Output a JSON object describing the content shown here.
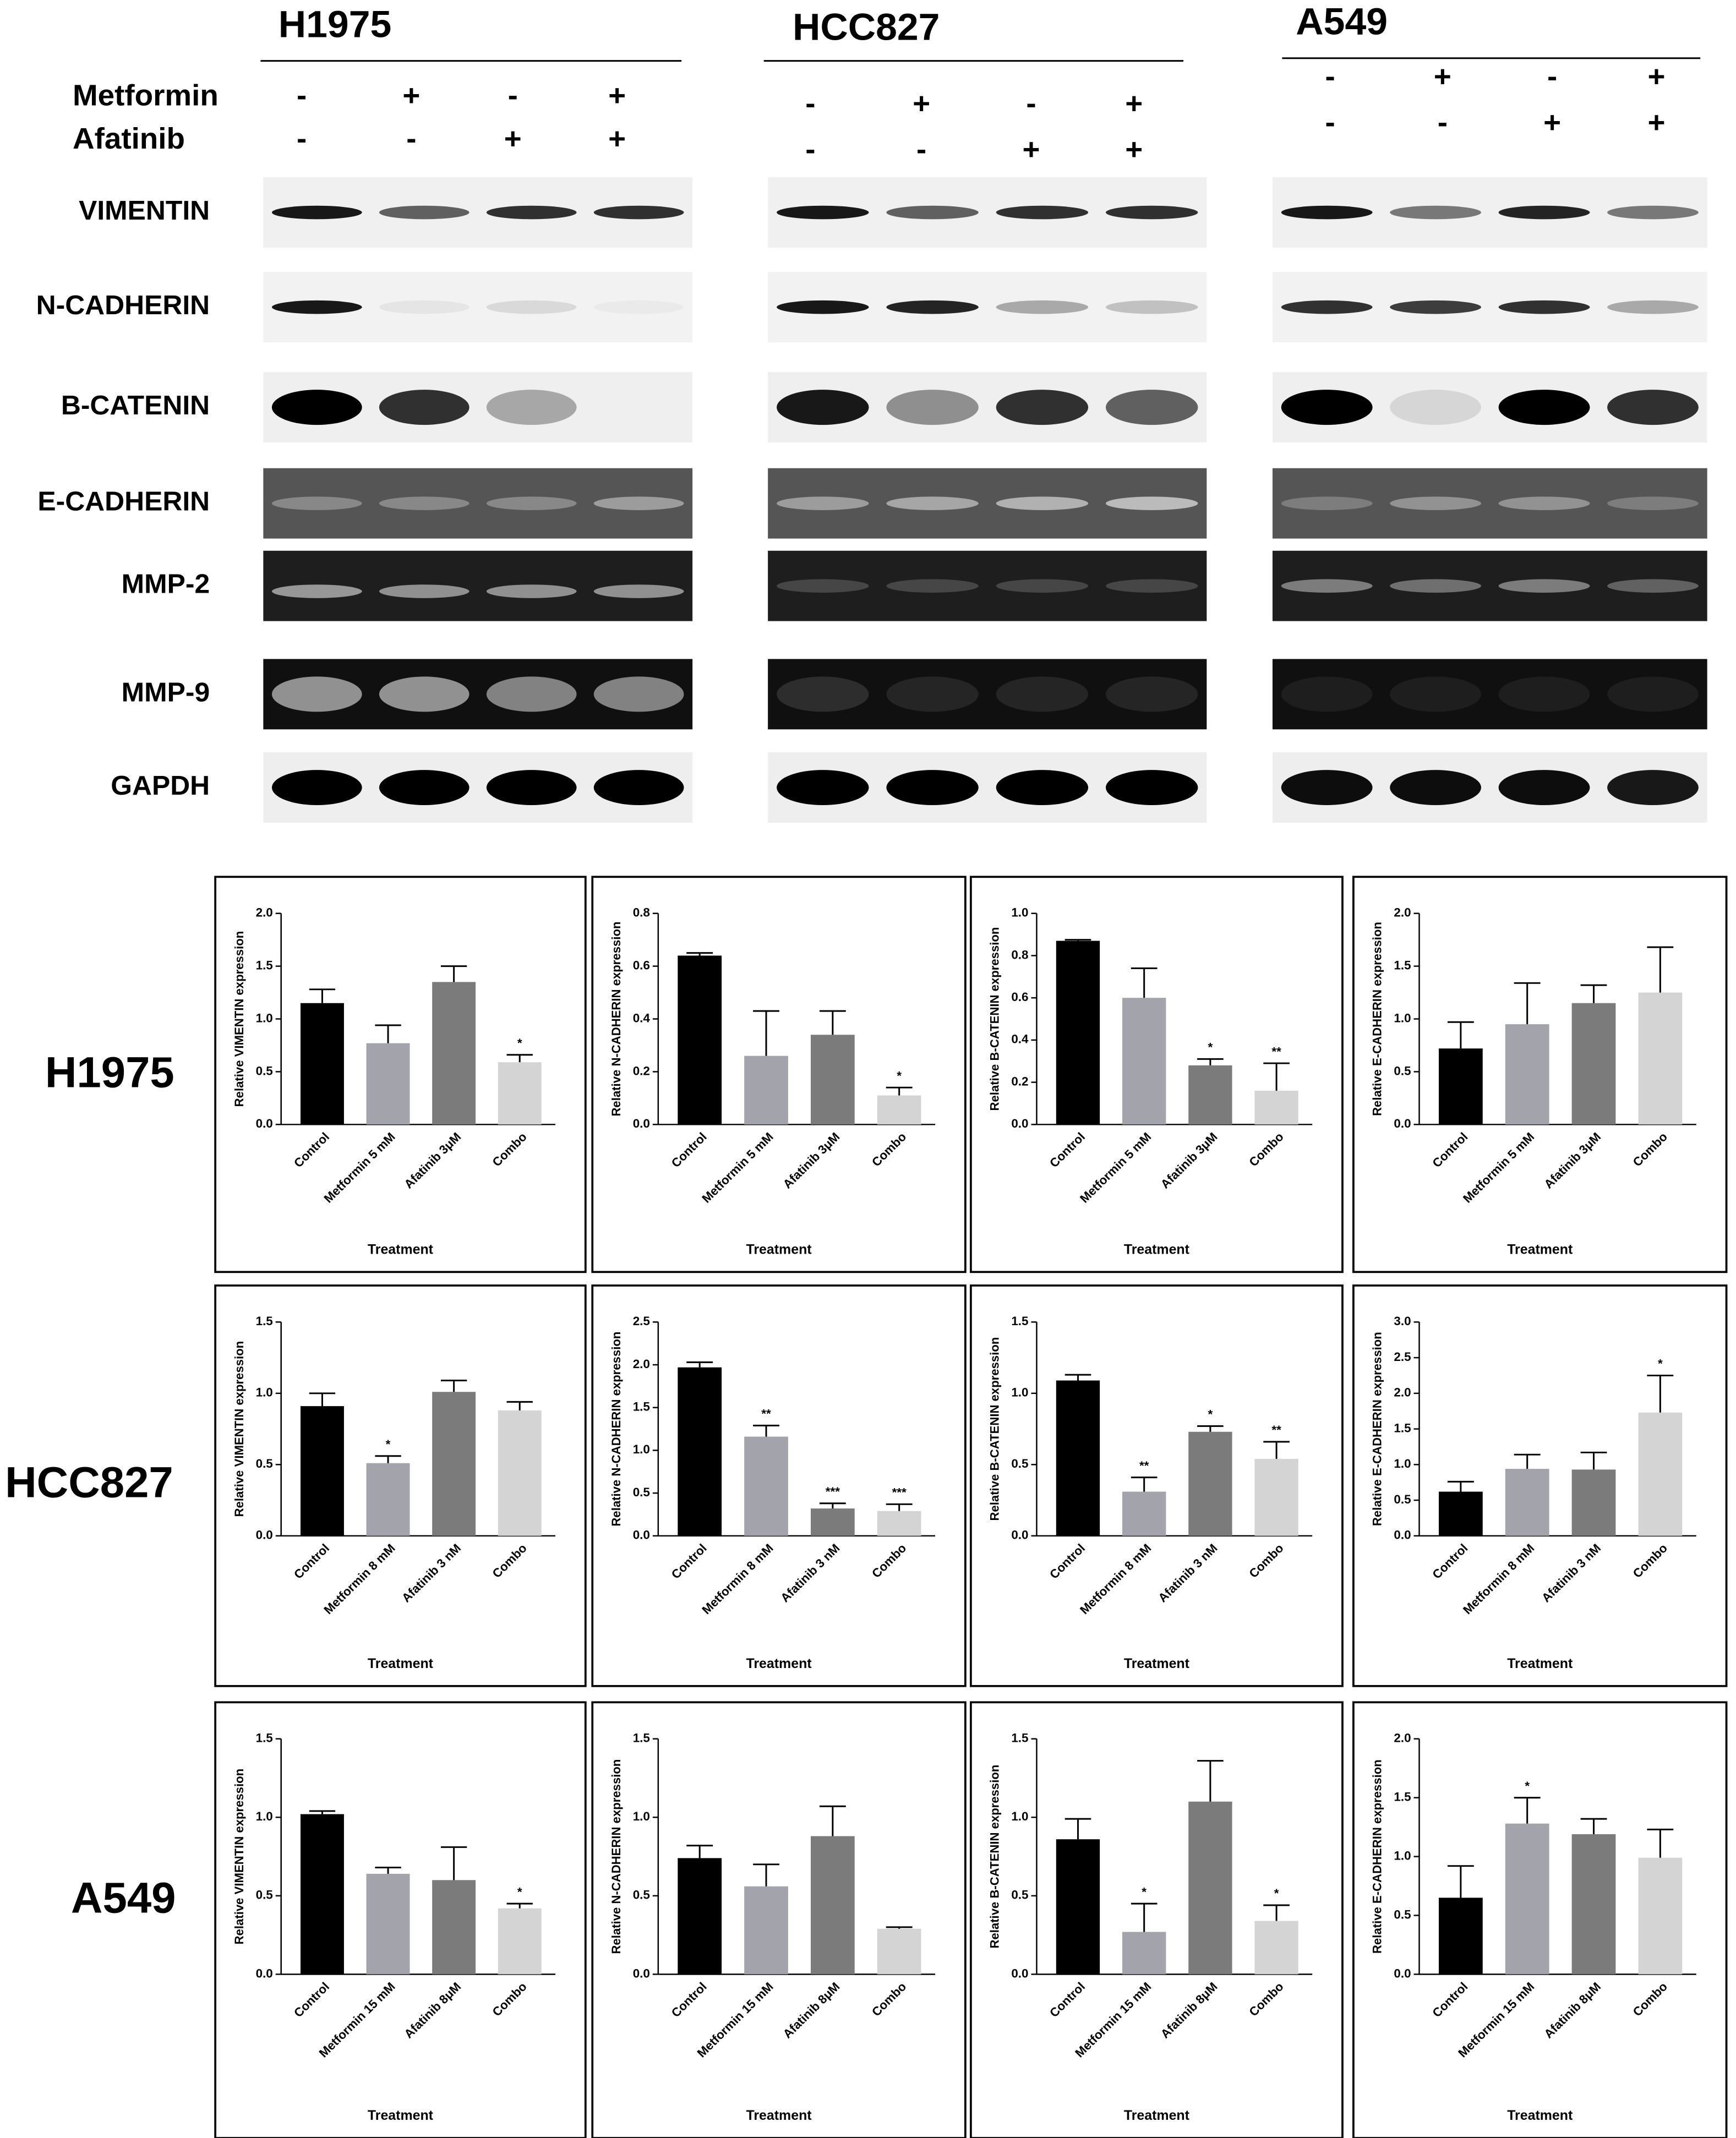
{
  "blots": {
    "cell_lines": [
      "H1975",
      "HCC827",
      "A549"
    ],
    "treatments": [
      {
        "name": "Metformin",
        "signs": [
          "-",
          "+",
          "-",
          "+"
        ]
      },
      {
        "name": "Afatinib",
        "signs": [
          "-",
          "-",
          "+",
          "+"
        ]
      }
    ],
    "proteins": [
      "VIMENTIN",
      "N-CADHERIN",
      "B-CATENIN",
      "E-CADHERIN",
      "MMP-2",
      "MMP-9",
      "GAPDH"
    ]
  },
  "chart_data": [
    {
      "type": "bar",
      "ylabel": "Relative VIMENTIN expression",
      "xlabel": "Treatment",
      "categories": [
        "Control",
        "Metformin 5 mM",
        "Afatinib 3μM",
        "Combo"
      ],
      "values": [
        1.15,
        0.77,
        1.35,
        0.59
      ],
      "errors": [
        0.13,
        0.17,
        0.15,
        0.07
      ],
      "annotations": [
        null,
        null,
        null,
        "*"
      ],
      "colors": [
        "#000000",
        "#a3a3ab",
        "#7b7b7b",
        "#d4d4d4"
      ],
      "ylim": [
        0,
        2
      ],
      "yticks": [
        {
          "value": 0,
          "label": "0.0"
        },
        {
          "value": 0.5,
          "label": "0.5"
        },
        {
          "value": 1,
          "label": "1.0"
        },
        {
          "value": 1.5,
          "label": "1.5"
        },
        {
          "value": 2,
          "label": "2.0"
        }
      ]
    },
    {
      "type": "bar",
      "ylabel": "Relative N-CADHERIN expression",
      "xlabel": "Treatment",
      "categories": [
        "Control",
        "Metformin 5 mM",
        "Afatinib 3μM",
        "Combo"
      ],
      "values": [
        0.64,
        0.26,
        0.34,
        0.11
      ],
      "errors": [
        0.01,
        0.17,
        0.09,
        0.03
      ],
      "annotations": [
        null,
        null,
        null,
        "*"
      ],
      "colors": [
        "#000000",
        "#a3a3ab",
        "#7b7b7b",
        "#d4d4d4"
      ],
      "ylim": [
        0,
        0.8
      ],
      "yticks": [
        {
          "value": 0,
          "label": "0.0"
        },
        {
          "value": 0.2,
          "label": "0.2"
        },
        {
          "value": 0.4,
          "label": "0.4"
        },
        {
          "value": 0.6,
          "label": "0.6"
        },
        {
          "value": 0.8,
          "label": "0.8"
        }
      ]
    },
    {
      "type": "bar",
      "ylabel": "Relative B-CATENIN expression",
      "xlabel": "Treatment",
      "categories": [
        "Control",
        "Metformin 5 mM",
        "Afatinib 3μM",
        "Combo"
      ],
      "values": [
        0.87,
        0.6,
        0.28,
        0.16
      ],
      "errors": [
        0.005,
        0.14,
        0.03,
        0.13
      ],
      "annotations": [
        null,
        null,
        "*",
        "**"
      ],
      "colors": [
        "#000000",
        "#a3a3ab",
        "#7b7b7b",
        "#d4d4d4"
      ],
      "ylim": [
        0,
        1
      ],
      "yticks": [
        {
          "value": 0,
          "label": "0.0"
        },
        {
          "value": 0.2,
          "label": "0.2"
        },
        {
          "value": 0.4,
          "label": "0.4"
        },
        {
          "value": 0.6,
          "label": "0.6"
        },
        {
          "value": 0.8,
          "label": "0.8"
        },
        {
          "value": 1,
          "label": "1.0"
        }
      ]
    },
    {
      "type": "bar",
      "ylabel": "Relative E-CADHERIN expression",
      "xlabel": "Treatment",
      "categories": [
        "Control",
        "Metformin 5 mM",
        "Afatinib 3μM",
        "Combo"
      ],
      "values": [
        0.72,
        0.95,
        1.15,
        1.25
      ],
      "errors": [
        0.25,
        0.39,
        0.17,
        0.43
      ],
      "annotations": [
        null,
        null,
        null,
        null
      ],
      "colors": [
        "#000000",
        "#a3a3ab",
        "#7b7b7b",
        "#d4d4d4"
      ],
      "ylim": [
        0,
        2
      ],
      "yticks": [
        {
          "value": 0,
          "label": "0.0"
        },
        {
          "value": 0.5,
          "label": "0.5"
        },
        {
          "value": 1,
          "label": "1.0"
        },
        {
          "value": 1.5,
          "label": "1.5"
        },
        {
          "value": 2,
          "label": "2.0"
        }
      ]
    },
    {
      "type": "bar",
      "ylabel": "Relative VIMENTIN expression",
      "xlabel": "Treatment",
      "categories": [
        "Control",
        "Metformin 8 mM",
        "Afatinib 3 nM",
        "Combo"
      ],
      "values": [
        0.91,
        0.51,
        1.01,
        0.88
      ],
      "errors": [
        0.09,
        0.05,
        0.08,
        0.06
      ],
      "annotations": [
        null,
        "*",
        null,
        null
      ],
      "colors": [
        "#000000",
        "#a3a3ab",
        "#7b7b7b",
        "#d4d4d4"
      ],
      "ylim": [
        0,
        1.5
      ],
      "yticks": [
        {
          "value": 0,
          "label": "0.0"
        },
        {
          "value": 0.5,
          "label": "0.5"
        },
        {
          "value": 1,
          "label": "1.0"
        },
        {
          "value": 1.5,
          "label": "1.5"
        }
      ]
    },
    {
      "type": "bar",
      "ylabel": "Relative N-CADHERIN expression",
      "xlabel": "Treatment",
      "categories": [
        "Control",
        "Metformin 8 mM",
        "Afatinib 3 nM",
        "Combo"
      ],
      "values": [
        1.97,
        1.16,
        0.32,
        0.29
      ],
      "errors": [
        0.06,
        0.13,
        0.06,
        0.08
      ],
      "annotations": [
        null,
        "**",
        "***",
        "***"
      ],
      "colors": [
        "#000000",
        "#a3a3ab",
        "#7b7b7b",
        "#d4d4d4"
      ],
      "ylim": [
        0,
        2.5
      ],
      "yticks": [
        {
          "value": 0,
          "label": "0.0"
        },
        {
          "value": 0.5,
          "label": "0.5"
        },
        {
          "value": 1,
          "label": "1.0"
        },
        {
          "value": 1.5,
          "label": "1.5"
        },
        {
          "value": 2,
          "label": "2.0"
        },
        {
          "value": 2.5,
          "label": "2.5"
        }
      ]
    },
    {
      "type": "bar",
      "ylabel": "Relative B-CATENIN expression",
      "xlabel": "Treatment",
      "categories": [
        "Control",
        "Metformin 8 mM",
        "Afatinib 3 nM",
        "Combo"
      ],
      "values": [
        1.09,
        0.31,
        0.73,
        0.54
      ],
      "errors": [
        0.04,
        0.1,
        0.04,
        0.12
      ],
      "annotations": [
        null,
        "**",
        "*",
        "**"
      ],
      "colors": [
        "#000000",
        "#a3a3ab",
        "#7b7b7b",
        "#d4d4d4"
      ],
      "ylim": [
        0,
        1.5
      ],
      "yticks": [
        {
          "value": 0,
          "label": "0.0"
        },
        {
          "value": 0.5,
          "label": "0.5"
        },
        {
          "value": 1,
          "label": "1.0"
        },
        {
          "value": 1.5,
          "label": "1.5"
        }
      ]
    },
    {
      "type": "bar",
      "ylabel": "Relative E-CADHERIN expression",
      "xlabel": "Treatment",
      "categories": [
        "Control",
        "Metformin 8 mM",
        "Afatinib 3 nM",
        "Combo"
      ],
      "values": [
        0.62,
        0.94,
        0.93,
        1.73
      ],
      "errors": [
        0.14,
        0.2,
        0.24,
        0.52
      ],
      "annotations": [
        null,
        null,
        null,
        "*"
      ],
      "colors": [
        "#000000",
        "#a3a3ab",
        "#7b7b7b",
        "#d4d4d4"
      ],
      "ylim": [
        0,
        3
      ],
      "yticks": [
        {
          "value": 0,
          "label": "0.0"
        },
        {
          "value": 0.5,
          "label": "0.5"
        },
        {
          "value": 1,
          "label": "1.0"
        },
        {
          "value": 1.5,
          "label": "1.5"
        },
        {
          "value": 2,
          "label": "2.0"
        },
        {
          "value": 2.5,
          "label": "2.5"
        },
        {
          "value": 3,
          "label": "3.0"
        }
      ]
    },
    {
      "type": "bar",
      "ylabel": "Relative VIMENTIN expression",
      "xlabel": "Treatment",
      "categories": [
        "Control",
        "Metformin 15 mM",
        "Afatinib 8μM",
        "Combo"
      ],
      "values": [
        1.02,
        0.64,
        0.6,
        0.42
      ],
      "errors": [
        0.02,
        0.04,
        0.21,
        0.03
      ],
      "annotations": [
        null,
        null,
        null,
        "*"
      ],
      "colors": [
        "#000000",
        "#a3a3ab",
        "#7b7b7b",
        "#d4d4d4"
      ],
      "ylim": [
        0,
        1.5
      ],
      "yticks": [
        {
          "value": 0,
          "label": "0.0"
        },
        {
          "value": 0.5,
          "label": "0.5"
        },
        {
          "value": 1,
          "label": "1.0"
        },
        {
          "value": 1.5,
          "label": "1.5"
        }
      ]
    },
    {
      "type": "bar",
      "ylabel": "Relative N-CADHERIN expression",
      "xlabel": "Treatment",
      "categories": [
        "Control",
        "Metformin 15 mM",
        "Afatinib 8μM",
        "Combo"
      ],
      "values": [
        0.74,
        0.56,
        0.88,
        0.29
      ],
      "errors": [
        0.08,
        0.14,
        0.19,
        0.01
      ],
      "annotations": [
        null,
        null,
        null,
        null
      ],
      "colors": [
        "#000000",
        "#a3a3ab",
        "#7b7b7b",
        "#d4d4d4"
      ],
      "ylim": [
        0,
        1.5
      ],
      "yticks": [
        {
          "value": 0,
          "label": "0.0"
        },
        {
          "value": 0.5,
          "label": "0.5"
        },
        {
          "value": 1,
          "label": "1.0"
        },
        {
          "value": 1.5,
          "label": "1.5"
        }
      ]
    },
    {
      "type": "bar",
      "ylabel": "Relative B-CATENIN expression",
      "xlabel": "Treatment",
      "categories": [
        "Control",
        "Metformin 15 mM",
        "Afatinib 8μM",
        "Combo"
      ],
      "values": [
        0.86,
        0.27,
        1.1,
        0.34
      ],
      "errors": [
        0.13,
        0.18,
        0.26,
        0.1
      ],
      "annotations": [
        null,
        "*",
        null,
        "*"
      ],
      "colors": [
        "#000000",
        "#a3a3ab",
        "#7b7b7b",
        "#d4d4d4"
      ],
      "ylim": [
        0,
        1.5
      ],
      "yticks": [
        {
          "value": 0,
          "label": "0.0"
        },
        {
          "value": 0.5,
          "label": "0.5"
        },
        {
          "value": 1,
          "label": "1.0"
        },
        {
          "value": 1.5,
          "label": "1.5"
        }
      ]
    },
    {
      "type": "bar",
      "ylabel": "Relative E-CADHERIN expression",
      "xlabel": "Treatment",
      "categories": [
        "Control",
        "Metformin 15 mM",
        "Afatinib 8μM",
        "Combo"
      ],
      "values": [
        0.65,
        1.28,
        1.19,
        0.99
      ],
      "errors": [
        0.27,
        0.22,
        0.13,
        0.24
      ],
      "annotations": [
        null,
        "*",
        null,
        null
      ],
      "colors": [
        "#000000",
        "#a3a3ab",
        "#7b7b7b",
        "#d4d4d4"
      ],
      "ylim": [
        0,
        2
      ],
      "yticks": [
        {
          "value": 0,
          "label": "0.0"
        },
        {
          "value": 0.5,
          "label": "0.5"
        },
        {
          "value": 1,
          "label": "1.0"
        },
        {
          "value": 1.5,
          "label": "1.5"
        },
        {
          "value": 2,
          "label": "2.0"
        }
      ]
    }
  ]
}
